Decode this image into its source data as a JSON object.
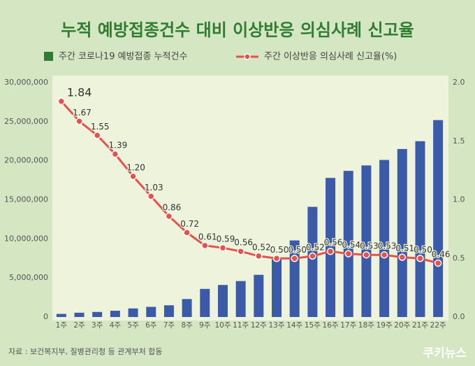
{
  "chart_data": {
    "type": "bar_line",
    "title": "누적 예방접종건수 대비 이상반응 의심사례 신고율",
    "categories": [
      "1주",
      "2주",
      "3주",
      "4주",
      "5주",
      "6주",
      "7주",
      "8주",
      "9주",
      "10주",
      "11주",
      "12주",
      "13주",
      "14주",
      "15주",
      "16주",
      "17주",
      "18주",
      "19주",
      "20주",
      "21주",
      "22주"
    ],
    "series": [
      {
        "name": "주간 코로나19 예방접종 누적건수",
        "type": "bar",
        "color": "#3b5ba9",
        "values": [
          400000,
          550000,
          650000,
          800000,
          1100000,
          1300000,
          1500000,
          2300000,
          3600000,
          4100000,
          4600000,
          5400000,
          7400000,
          9800000,
          14100000,
          17800000,
          18700000,
          19400000,
          20100000,
          21500000,
          22500000,
          25200000
        ]
      },
      {
        "name": "주간 이상반응 의심사례 신고율(%)",
        "type": "line",
        "color": "#e5524b",
        "axis": "y2",
        "values": [
          1.84,
          1.67,
          1.55,
          1.39,
          1.2,
          1.03,
          0.86,
          0.72,
          0.61,
          0.59,
          0.56,
          0.52,
          0.5,
          0.5,
          0.52,
          0.56,
          0.54,
          0.53,
          0.53,
          0.51,
          0.5,
          0.46
        ],
        "value_labels": [
          "1.84",
          "1.67",
          "1.55",
          "1.39",
          "1.20",
          "1.03",
          "0.86",
          "0.72",
          "0.61",
          "0.59",
          "0.56",
          "0.52",
          "0.50",
          "0.50",
          "0.52",
          "0.56",
          "0.54",
          "0.53",
          "0.53",
          "0.51",
          "0.50",
          "0.46"
        ]
      }
    ],
    "ylim": [
      0,
      30000000
    ],
    "yticks": [
      {
        "value": 0,
        "label": "0"
      },
      {
        "value": 5000000,
        "label": "5,000,000"
      },
      {
        "value": 10000000,
        "label": "10,000,000"
      },
      {
        "value": 15000000,
        "label": "15,000,000"
      },
      {
        "value": 20000000,
        "label": "20,000,000"
      },
      {
        "value": 25000000,
        "label": "25,000,000"
      },
      {
        "value": 30000000,
        "label": "30,000,000"
      }
    ],
    "y2lim": [
      0,
      2
    ],
    "y2ticks": [
      {
        "value": 0,
        "label": "0.0"
      },
      0.5,
      {
        "value": 1,
        "label": "1.0"
      },
      1.5,
      {
        "value": 2,
        "label": "2.0"
      }
    ],
    "grid": false,
    "source": "자료 : 보건복지부, 질병관리청 등 관계부처 합동",
    "logo": "쿠키뉴스"
  }
}
